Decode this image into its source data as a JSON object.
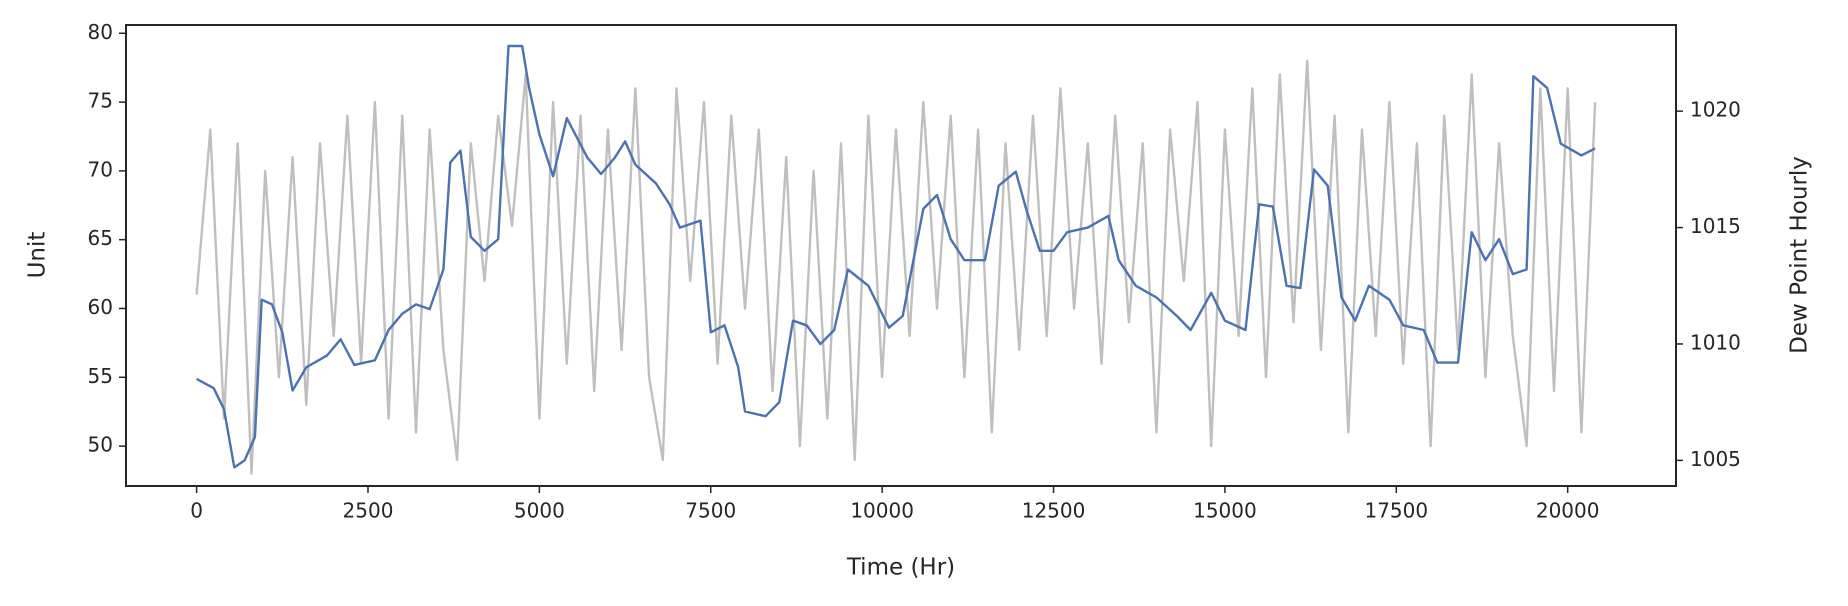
{
  "chart_data": {
    "type": "line",
    "xlabel": "Time (Hr)",
    "ylabel": "Unit",
    "y2label": "Dew Point Hourly",
    "xlim": [
      -1030,
      21580
    ],
    "xticks": [
      0,
      2500,
      5000,
      7500,
      10000,
      12500,
      15000,
      17500,
      20000
    ],
    "ylim": [
      47.1,
      80.6
    ],
    "yticks": [
      50,
      55,
      60,
      65,
      70,
      75,
      80
    ],
    "y2lim": [
      1003.9,
      1023.7
    ],
    "y2ticks": [
      1005,
      1010,
      1015,
      1020
    ],
    "grid": false,
    "series": [
      {
        "color": "#bfbfbf",
        "axis": "y",
        "x": [
          0,
          200,
          400,
          600,
          800,
          1000,
          1200,
          1400,
          1600,
          1800,
          2000,
          2200,
          2400,
          2600,
          2800,
          3000,
          3200,
          3400,
          3600,
          3800,
          4000,
          4200,
          4400,
          4600,
          4800,
          5000,
          5200,
          5400,
          5600,
          5800,
          6000,
          6200,
          6400,
          6600,
          6800,
          7000,
          7200,
          7400,
          7600,
          7800,
          8000,
          8200,
          8400,
          8600,
          8800,
          9000,
          9200,
          9400,
          9600,
          9800,
          10000,
          10200,
          10400,
          10600,
          10800,
          11000,
          11200,
          11400,
          11600,
          11800,
          12000,
          12200,
          12400,
          12600,
          12800,
          13000,
          13200,
          13400,
          13600,
          13800,
          14000,
          14200,
          14400,
          14600,
          14800,
          15000,
          15200,
          15400,
          15600,
          15800,
          16000,
          16200,
          16400,
          16600,
          16800,
          17000,
          17200,
          17400,
          17600,
          17800,
          18000,
          18200,
          18400,
          18600,
          18800,
          19000,
          19200,
          19400,
          19600,
          19800,
          20000,
          20200,
          20400
        ],
        "values": [
          61,
          73,
          52,
          72,
          48,
          70,
          55,
          71,
          53,
          72,
          58,
          74,
          56,
          75,
          52,
          74,
          51,
          73,
          57,
          49,
          72,
          62,
          74,
          66,
          77,
          52,
          75,
          56,
          74,
          54,
          73,
          57,
          76,
          55,
          49,
          76,
          62,
          75,
          56,
          74,
          60,
          73,
          54,
          71,
          50,
          70,
          52,
          72,
          49,
          74,
          55,
          73,
          58,
          75,
          60,
          74,
          55,
          73,
          51,
          72,
          57,
          74,
          58,
          76,
          60,
          72,
          56,
          74,
          59,
          72,
          51,
          73,
          62,
          75,
          50,
          73,
          58,
          76,
          55,
          77,
          59,
          78,
          57,
          74,
          51,
          73,
          58,
          75,
          56,
          72,
          50,
          74,
          57,
          77,
          55,
          72,
          58,
          50,
          76,
          54,
          76,
          51,
          75
        ]
      },
      {
        "color": "#4c72b0",
        "axis": "y2",
        "x": [
          0,
          250,
          400,
          550,
          700,
          850,
          950,
          1100,
          1250,
          1400,
          1600,
          1900,
          2100,
          2300,
          2600,
          2800,
          3000,
          3200,
          3400,
          3600,
          3700,
          3850,
          4000,
          4200,
          4400,
          4550,
          4750,
          4850,
          5000,
          5200,
          5400,
          5700,
          5900,
          6100,
          6250,
          6400,
          6700,
          6900,
          7050,
          7350,
          7500,
          7700,
          7900,
          8000,
          8300,
          8500,
          8700,
          8900,
          9100,
          9300,
          9500,
          9800,
          10100,
          10300,
          10600,
          10800,
          11000,
          11200,
          11500,
          11700,
          11950,
          12100,
          12300,
          12500,
          12700,
          13000,
          13300,
          13450,
          13700,
          14000,
          14300,
          14500,
          14800,
          15000,
          15300,
          15500,
          15700,
          15900,
          16100,
          16300,
          16500,
          16700,
          16900,
          17100,
          17400,
          17600,
          17900,
          18100,
          18400,
          18600,
          18800,
          19000,
          19200,
          19400,
          19500,
          19700,
          19900,
          20200,
          20400
        ],
        "values": [
          1008.5,
          1008.1,
          1007.2,
          1004.7,
          1005.0,
          1006.0,
          1011.9,
          1011.7,
          1010.5,
          1008.0,
          1009.0,
          1009.5,
          1010.2,
          1009.1,
          1009.3,
          1010.6,
          1011.3,
          1011.7,
          1011.5,
          1013.2,
          1017.8,
          1018.3,
          1014.6,
          1014.0,
          1014.5,
          1022.8,
          1022.8,
          1021.0,
          1019.0,
          1017.2,
          1019.7,
          1018.0,
          1017.3,
          1018.0,
          1018.7,
          1017.7,
          1016.9,
          1016.0,
          1015.0,
          1015.3,
          1010.5,
          1010.8,
          1009.0,
          1007.1,
          1006.9,
          1007.5,
          1011.0,
          1010.8,
          1010.0,
          1010.6,
          1013.2,
          1012.5,
          1010.7,
          1011.2,
          1015.8,
          1016.4,
          1014.5,
          1013.6,
          1013.6,
          1016.8,
          1017.4,
          1015.8,
          1014.0,
          1014.0,
          1014.8,
          1015.0,
          1015.5,
          1013.6,
          1012.5,
          1012.0,
          1011.2,
          1010.6,
          1012.2,
          1011.0,
          1010.6,
          1016.0,
          1015.9,
          1012.5,
          1012.4,
          1017.5,
          1016.8,
          1012.0,
          1011.0,
          1012.5,
          1011.9,
          1010.8,
          1010.6,
          1009.2,
          1009.2,
          1014.8,
          1013.6,
          1014.5,
          1013.0,
          1013.2,
          1021.5,
          1021.0,
          1018.6,
          1018.1,
          1018.4
        ]
      }
    ]
  }
}
